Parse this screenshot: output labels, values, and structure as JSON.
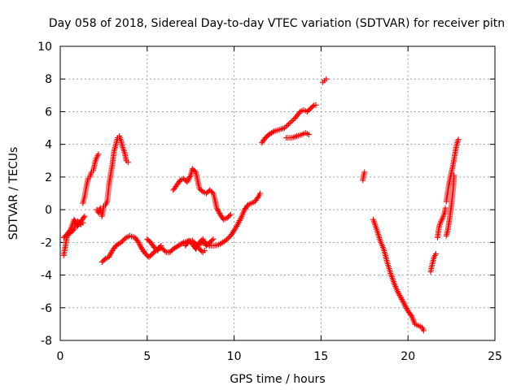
{
  "chart_data": {
    "type": "scatter",
    "title": "Day 058 of 2018, Sidereal Day-to-day VTEC variation (SDTVAR) for receiver pitn",
    "xlabel": "GPS time / hours",
    "ylabel": "SDTVAR / TECUs",
    "xlim": [
      0,
      25
    ],
    "ylim": [
      -8,
      10
    ],
    "xticks": [
      "0",
      "5",
      "10",
      "15",
      "20",
      "25"
    ],
    "yticks": [
      "-8",
      "-6",
      "-4",
      "-2",
      "0",
      "2",
      "4",
      "6",
      "8",
      "10"
    ],
    "grid": true,
    "marker": "plus",
    "color": "#ff0000",
    "tracks": [
      [
        [
          0.2,
          -2.8
        ],
        [
          0.3,
          -2.2
        ],
        [
          0.4,
          -1.6
        ],
        [
          0.6,
          -1.4
        ],
        [
          0.8,
          -1.2
        ],
        [
          0.9,
          -0.8
        ],
        [
          1.0,
          -0.7
        ],
        [
          1.2,
          -0.9
        ],
        [
          1.3,
          -0.8
        ]
      ],
      [
        [
          0.2,
          -1.7
        ],
        [
          0.4,
          -1.5
        ],
        [
          0.6,
          -1.2
        ],
        [
          0.8,
          -0.6
        ],
        [
          1.0,
          -1.0
        ],
        [
          1.2,
          -0.7
        ],
        [
          1.4,
          -0.4
        ]
      ],
      [
        [
          1.3,
          0.4
        ],
        [
          1.4,
          0.8
        ],
        [
          1.5,
          1.4
        ],
        [
          1.6,
          1.9
        ],
        [
          1.7,
          2.0
        ],
        [
          1.8,
          2.3
        ],
        [
          1.9,
          2.4
        ],
        [
          2.0,
          2.9
        ],
        [
          2.1,
          3.2
        ],
        [
          2.2,
          3.4
        ]
      ],
      [
        [
          2.1,
          0.0
        ],
        [
          2.2,
          -0.2
        ],
        [
          2.3,
          0.1
        ],
        [
          2.4,
          -0.4
        ],
        [
          2.5,
          0.2
        ],
        [
          2.6,
          0.3
        ],
        [
          2.7,
          0.5
        ],
        [
          2.8,
          1.5
        ],
        [
          3.0,
          2.8
        ],
        [
          3.1,
          3.6
        ],
        [
          3.2,
          4.0
        ],
        [
          3.3,
          4.4
        ],
        [
          3.4,
          4.5
        ],
        [
          3.5,
          4.2
        ],
        [
          3.6,
          3.8
        ],
        [
          3.7,
          3.5
        ],
        [
          3.8,
          3.0
        ],
        [
          3.9,
          2.9
        ]
      ],
      [
        [
          2.4,
          -3.2
        ],
        [
          2.6,
          -3.0
        ],
        [
          2.8,
          -2.9
        ],
        [
          3.0,
          -2.5
        ],
        [
          3.2,
          -2.2
        ],
        [
          3.5,
          -2.0
        ],
        [
          3.8,
          -1.7
        ],
        [
          4.0,
          -1.6
        ],
        [
          4.3,
          -1.7
        ],
        [
          4.5,
          -2.0
        ],
        [
          4.7,
          -2.4
        ],
        [
          4.9,
          -2.7
        ],
        [
          5.1,
          -2.9
        ],
        [
          5.3,
          -2.7
        ],
        [
          5.5,
          -2.5
        ],
        [
          5.7,
          -2.3
        ],
        [
          5.9,
          -2.4
        ],
        [
          6.1,
          -2.6
        ],
        [
          6.3,
          -2.6
        ],
        [
          6.5,
          -2.4
        ],
        [
          6.8,
          -2.2
        ],
        [
          7.1,
          -2.0
        ],
        [
          7.4,
          -1.9
        ],
        [
          7.6,
          -1.9
        ],
        [
          7.8,
          -2.1
        ],
        [
          8.0,
          -2.4
        ],
        [
          8.2,
          -2.6
        ],
        [
          8.3,
          -2.5
        ]
      ],
      [
        [
          5.0,
          -1.8
        ],
        [
          5.2,
          -2.0
        ],
        [
          5.4,
          -2.3
        ],
        [
          5.6,
          -2.5
        ],
        [
          5.8,
          -2.2
        ]
      ],
      [
        [
          7.2,
          -2.2
        ],
        [
          7.4,
          -1.9
        ],
        [
          7.6,
          -2.1
        ],
        [
          7.8,
          -2.4
        ],
        [
          8.0,
          -2.0
        ],
        [
          8.2,
          -1.8
        ],
        [
          8.4,
          -2.2
        ],
        [
          8.6,
          -2.0
        ],
        [
          8.8,
          -1.8
        ]
      ],
      [
        [
          8.0,
          -2.1
        ],
        [
          8.3,
          -2.0
        ],
        [
          8.6,
          -2.2
        ],
        [
          8.9,
          -2.2
        ],
        [
          9.2,
          -2.1
        ],
        [
          9.5,
          -1.9
        ],
        [
          9.8,
          -1.6
        ],
        [
          10.1,
          -1.1
        ],
        [
          10.4,
          -0.5
        ],
        [
          10.6,
          0.0
        ],
        [
          10.8,
          0.3
        ],
        [
          11.0,
          0.4
        ],
        [
          11.2,
          0.5
        ],
        [
          11.4,
          0.8
        ],
        [
          11.5,
          1.0
        ]
      ],
      [
        [
          6.5,
          1.2
        ],
        [
          6.7,
          1.5
        ],
        [
          6.9,
          1.8
        ],
        [
          7.1,
          1.9
        ],
        [
          7.3,
          1.7
        ],
        [
          7.5,
          2.1
        ],
        [
          7.6,
          2.5
        ],
        [
          7.8,
          2.3
        ],
        [
          8.0,
          1.3
        ],
        [
          8.2,
          1.1
        ],
        [
          8.4,
          1.0
        ],
        [
          8.6,
          1.2
        ],
        [
          8.8,
          1.0
        ],
        [
          8.9,
          0.6
        ],
        [
          9.0,
          0.1
        ],
        [
          9.2,
          -0.3
        ],
        [
          9.4,
          -0.6
        ],
        [
          9.6,
          -0.5
        ],
        [
          9.8,
          -0.3
        ]
      ],
      [
        [
          11.6,
          4.1
        ],
        [
          11.8,
          4.4
        ],
        [
          12.0,
          4.6
        ],
        [
          12.3,
          4.8
        ],
        [
          12.6,
          4.9
        ],
        [
          12.9,
          5.0
        ],
        [
          13.2,
          5.3
        ],
        [
          13.5,
          5.6
        ],
        [
          13.8,
          6.0
        ],
        [
          14.0,
          6.1
        ],
        [
          14.2,
          6.0
        ],
        [
          14.4,
          6.2
        ],
        [
          14.6,
          6.4
        ],
        [
          14.7,
          6.4
        ]
      ],
      [
        [
          13.0,
          4.4
        ],
        [
          13.3,
          4.4
        ],
        [
          13.6,
          4.5
        ],
        [
          13.9,
          4.6
        ],
        [
          14.1,
          4.7
        ],
        [
          14.3,
          4.6
        ]
      ],
      [
        [
          15.1,
          7.8
        ],
        [
          15.2,
          7.9
        ],
        [
          15.3,
          8.0
        ]
      ],
      [
        [
          17.4,
          1.8
        ],
        [
          17.45,
          2.1
        ],
        [
          17.5,
          2.3
        ]
      ],
      [
        [
          18.0,
          -0.6
        ],
        [
          18.2,
          -1.2
        ],
        [
          18.4,
          -1.9
        ],
        [
          18.6,
          -2.4
        ],
        [
          18.8,
          -3.2
        ],
        [
          19.0,
          -3.9
        ],
        [
          19.2,
          -4.5
        ],
        [
          19.4,
          -5.0
        ],
        [
          19.6,
          -5.4
        ],
        [
          19.8,
          -5.8
        ],
        [
          20.0,
          -6.2
        ],
        [
          20.2,
          -6.5
        ],
        [
          20.4,
          -7.0
        ],
        [
          20.6,
          -7.1
        ],
        [
          20.8,
          -7.2
        ],
        [
          20.9,
          -7.4
        ]
      ],
      [
        [
          21.3,
          -3.8
        ],
        [
          21.4,
          -3.3
        ],
        [
          21.5,
          -2.9
        ],
        [
          21.6,
          -2.7
        ]
      ],
      [
        [
          21.7,
          -1.7
        ],
        [
          21.8,
          -1.0
        ],
        [
          21.9,
          -0.7
        ],
        [
          22.0,
          -0.5
        ],
        [
          22.1,
          -0.2
        ],
        [
          22.15,
          0.1
        ]
      ],
      [
        [
          22.2,
          0.5
        ],
        [
          22.3,
          1.2
        ],
        [
          22.4,
          1.8
        ],
        [
          22.5,
          2.3
        ],
        [
          22.6,
          2.8
        ],
        [
          22.7,
          3.4
        ],
        [
          22.8,
          4.0
        ],
        [
          22.9,
          4.3
        ]
      ],
      [
        [
          22.2,
          -1.6
        ],
        [
          22.3,
          -1.2
        ],
        [
          22.4,
          -0.5
        ],
        [
          22.5,
          0.3
        ],
        [
          22.6,
          1.3
        ],
        [
          22.65,
          2.1
        ]
      ]
    ]
  }
}
